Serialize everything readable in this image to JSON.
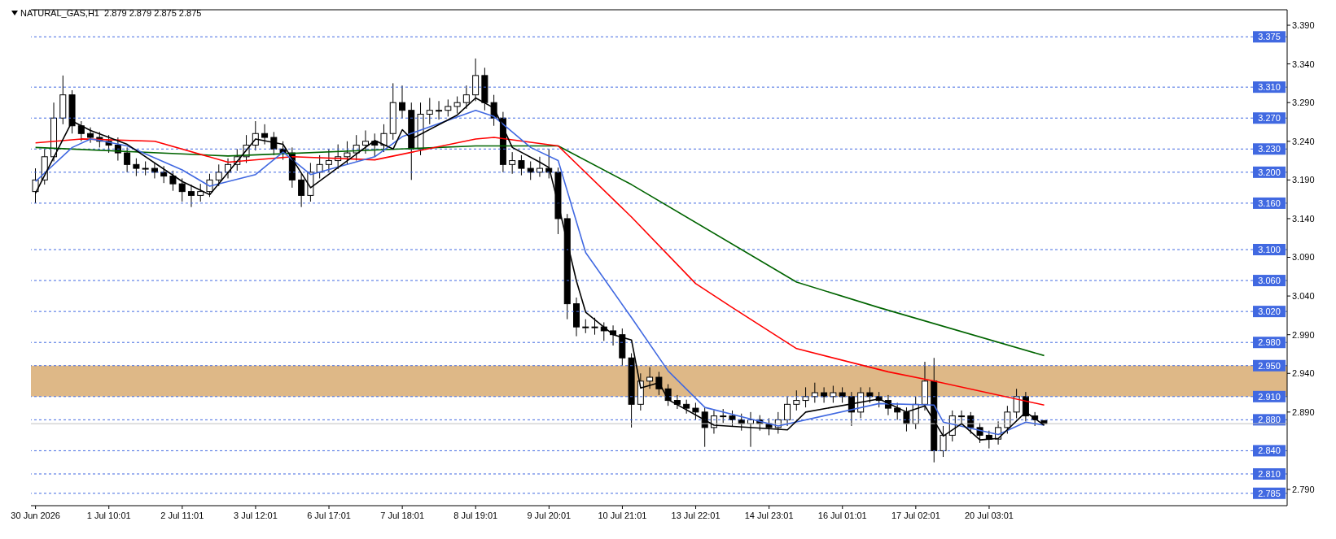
{
  "chart_data": {
    "type": "candlestick",
    "title": "NATURAL_GAS,H1  2.879 2.879 2.875 2.875",
    "color": "#000000",
    "categories": [
      "30 Jun 2026",
      null,
      null,
      null,
      null,
      null,
      null,
      null,
      "1 Jul 10:01",
      null,
      null,
      null,
      null,
      null,
      null,
      null,
      "2 Jul 11:01",
      null,
      null,
      null,
      null,
      null,
      null,
      null,
      "3 Jul 12:01",
      null,
      null,
      null,
      null,
      null,
      null,
      null,
      "6 Jul 17:01",
      null,
      null,
      null,
      null,
      null,
      null,
      null,
      "7 Jul 18:01",
      null,
      null,
      null,
      null,
      null,
      null,
      null,
      "8 Jul 19:01",
      null,
      null,
      null,
      null,
      null,
      null,
      null,
      "9 Jul 20:01",
      null,
      null,
      null,
      null,
      null,
      null,
      null,
      "10 Jul 21:01",
      null,
      null,
      null,
      null,
      null,
      null,
      null,
      "13 Jul 22:01",
      null,
      null,
      null,
      null,
      null,
      null,
      null,
      "14 Jul 23:01",
      null,
      null,
      null,
      null,
      null,
      null,
      null,
      "16 Jul 01:01",
      null,
      null,
      null,
      null,
      null,
      null,
      null,
      "17 Jul 02:01",
      null,
      null,
      null,
      null,
      null,
      null,
      null,
      "20 Jul 03:01",
      null,
      null,
      null,
      null,
      null,
      null,
      null,
      null,
      null,
      null,
      null,
      null,
      null,
      null,
      null,
      null,
      null,
      null,
      null,
      null,
      null,
      null,
      null,
      null,
      null,
      null,
      null,
      null,
      null,
      null,
      null,
      null
    ],
    "ohlc": [
      [
        3.175,
        3.205,
        3.16,
        3.19
      ],
      [
        3.19,
        3.23,
        3.184,
        3.22
      ],
      [
        3.22,
        3.29,
        3.214,
        3.27
      ],
      [
        3.27,
        3.325,
        3.262,
        3.3
      ],
      [
        3.3,
        3.306,
        3.25,
        3.26
      ],
      [
        3.26,
        3.266,
        3.24,
        3.25
      ],
      [
        3.25,
        3.258,
        3.238,
        3.245
      ],
      [
        3.245,
        3.252,
        3.232,
        3.24
      ],
      [
        3.24,
        3.248,
        3.225,
        3.235
      ],
      [
        3.235,
        3.245,
        3.215,
        3.225
      ],
      [
        3.225,
        3.232,
        3.2,
        3.21
      ],
      [
        3.21,
        3.218,
        3.195,
        3.205
      ],
      [
        3.205,
        3.214,
        3.196,
        3.205
      ],
      [
        3.205,
        3.212,
        3.192,
        3.2
      ],
      [
        3.2,
        3.208,
        3.186,
        3.195
      ],
      [
        3.195,
        3.202,
        3.176,
        3.185
      ],
      [
        3.185,
        3.192,
        3.162,
        3.175
      ],
      [
        3.175,
        3.184,
        3.155,
        3.17
      ],
      [
        3.17,
        3.185,
        3.162,
        3.175
      ],
      [
        3.175,
        3.198,
        3.168,
        3.19
      ],
      [
        3.19,
        3.21,
        3.182,
        3.2
      ],
      [
        3.2,
        3.218,
        3.192,
        3.21
      ],
      [
        3.21,
        3.23,
        3.202,
        3.22
      ],
      [
        3.22,
        3.248,
        3.212,
        3.235
      ],
      [
        3.235,
        3.266,
        3.228,
        3.25
      ],
      [
        3.25,
        3.262,
        3.236,
        3.245
      ],
      [
        3.245,
        3.252,
        3.222,
        3.23
      ],
      [
        3.23,
        3.24,
        3.216,
        3.225
      ],
      [
        3.225,
        3.232,
        3.18,
        3.19
      ],
      [
        3.19,
        3.198,
        3.155,
        3.17
      ],
      [
        3.17,
        3.212,
        3.162,
        3.2
      ],
      [
        3.2,
        3.222,
        3.192,
        3.21
      ],
      [
        3.21,
        3.23,
        3.2,
        3.215
      ],
      [
        3.215,
        3.236,
        3.204,
        3.22
      ],
      [
        3.22,
        3.24,
        3.21,
        3.225
      ],
      [
        3.225,
        3.248,
        3.215,
        3.235
      ],
      [
        3.235,
        3.254,
        3.224,
        3.24
      ],
      [
        3.24,
        3.25,
        3.22,
        3.235
      ],
      [
        3.235,
        3.262,
        3.226,
        3.25
      ],
      [
        3.25,
        3.315,
        3.242,
        3.29
      ],
      [
        3.29,
        3.312,
        3.27,
        3.28
      ],
      [
        3.28,
        3.29,
        3.19,
        3.23
      ],
      [
        3.23,
        3.29,
        3.222,
        3.275
      ],
      [
        3.275,
        3.296,
        3.262,
        3.28
      ],
      [
        3.28,
        3.292,
        3.268,
        3.28
      ],
      [
        3.28,
        3.294,
        3.272,
        3.285
      ],
      [
        3.285,
        3.298,
        3.276,
        3.29
      ],
      [
        3.29,
        3.312,
        3.282,
        3.3
      ],
      [
        3.3,
        3.347,
        3.292,
        3.325
      ],
      [
        3.325,
        3.335,
        3.28,
        3.29
      ],
      [
        3.29,
        3.3,
        3.26,
        3.27
      ],
      [
        3.27,
        3.278,
        3.2,
        3.21
      ],
      [
        3.21,
        3.226,
        3.198,
        3.215
      ],
      [
        3.215,
        3.222,
        3.196,
        3.205
      ],
      [
        3.205,
        3.214,
        3.19,
        3.2
      ],
      [
        3.2,
        3.22,
        3.194,
        3.205
      ],
      [
        3.205,
        3.23,
        3.192,
        3.2
      ],
      [
        3.2,
        3.206,
        3.12,
        3.14
      ],
      [
        3.14,
        3.146,
        3.01,
        3.03
      ],
      [
        3.03,
        3.038,
        2.988,
        3.0
      ],
      [
        3.0,
        3.01,
        2.992,
        3.0
      ],
      [
        3.0,
        3.012,
        2.99,
        3.0
      ],
      [
        3.0,
        3.006,
        2.982,
        2.995
      ],
      [
        2.995,
        3.002,
        2.976,
        2.99
      ],
      [
        2.99,
        2.998,
        2.95,
        2.96
      ],
      [
        2.96,
        2.966,
        2.87,
        2.9
      ],
      [
        2.9,
        2.94,
        2.892,
        2.93
      ],
      [
        2.93,
        2.948,
        2.92,
        2.935
      ],
      [
        2.935,
        2.942,
        2.912,
        2.92
      ],
      [
        2.92,
        2.926,
        2.898,
        2.905
      ],
      [
        2.905,
        2.912,
        2.894,
        2.9
      ],
      [
        2.9,
        2.906,
        2.888,
        2.895
      ],
      [
        2.895,
        2.902,
        2.88,
        2.89
      ],
      [
        2.89,
        2.896,
        2.845,
        2.87
      ],
      [
        2.87,
        2.892,
        2.862,
        2.885
      ],
      [
        2.885,
        2.894,
        2.876,
        2.885
      ],
      [
        2.885,
        2.892,
        2.872,
        2.88
      ],
      [
        2.88,
        2.888,
        2.866,
        2.875
      ],
      [
        2.875,
        2.89,
        2.845,
        2.88
      ],
      [
        2.88,
        2.886,
        2.866,
        2.875
      ],
      [
        2.875,
        2.882,
        2.86,
        2.87
      ],
      [
        2.87,
        2.89,
        2.862,
        2.88
      ],
      [
        2.88,
        2.91,
        2.872,
        2.9
      ],
      [
        2.9,
        2.918,
        2.892,
        2.905
      ],
      [
        2.905,
        2.922,
        2.896,
        2.91
      ],
      [
        2.91,
        2.928,
        2.902,
        2.915
      ],
      [
        2.915,
        2.922,
        2.902,
        2.91
      ],
      [
        2.91,
        2.924,
        2.902,
        2.915
      ],
      [
        2.915,
        2.922,
        2.902,
        2.91
      ],
      [
        2.91,
        2.916,
        2.872,
        2.89
      ],
      [
        2.89,
        2.922,
        2.882,
        2.915
      ],
      [
        2.915,
        2.922,
        2.902,
        2.91
      ],
      [
        2.91,
        2.916,
        2.896,
        2.905
      ],
      [
        2.905,
        2.912,
        2.886,
        2.895
      ],
      [
        2.895,
        2.902,
        2.88,
        2.89
      ],
      [
        2.89,
        2.896,
        2.865,
        2.875
      ],
      [
        2.875,
        2.91,
        2.868,
        2.9
      ],
      [
        2.9,
        2.955,
        2.892,
        2.93
      ],
      [
        2.93,
        2.96,
        2.825,
        2.84
      ],
      [
        2.84,
        2.872,
        2.832,
        2.86
      ],
      [
        2.86,
        2.892,
        2.852,
        2.885
      ],
      [
        2.885,
        2.892,
        2.876,
        2.885
      ],
      [
        2.885,
        2.89,
        2.862,
        2.87
      ],
      [
        2.87,
        2.876,
        2.85,
        2.86
      ],
      [
        2.86,
        2.866,
        2.843,
        2.855
      ],
      [
        2.855,
        2.878,
        2.848,
        2.87
      ],
      [
        2.87,
        2.898,
        2.862,
        2.89
      ],
      [
        2.89,
        2.92,
        2.882,
        2.91
      ],
      [
        2.91,
        2.916,
        2.878,
        2.885
      ],
      [
        2.885,
        2.89,
        2.872,
        2.88
      ],
      [
        2.879,
        2.879,
        2.875,
        2.875
      ],
      null,
      null,
      null,
      null,
      null,
      null,
      null,
      null,
      null,
      null,
      null,
      null,
      null,
      null,
      null,
      null,
      null,
      null,
      null,
      null,
      null,
      null,
      null,
      null,
      null,
      null
    ],
    "series": [
      {
        "type": "line",
        "color": "#006400",
        "values": [
          3.232,
          null,
          null,
          null,
          null,
          null,
          null,
          null,
          null,
          null,
          null,
          null,
          null,
          null,
          null,
          null,
          null,
          null,
          null,
          null,
          null,
          3.221,
          null,
          null,
          null,
          null,
          null,
          null,
          null,
          null,
          null,
          null,
          null,
          null,
          null,
          null,
          null,
          null,
          null,
          null,
          null,
          null,
          null,
          null,
          null,
          null,
          null,
          null,
          3.234,
          null,
          null,
          null,
          null,
          null,
          null,
          null,
          null,
          3.234,
          null,
          null,
          null,
          null,
          null,
          null,
          null,
          3.184,
          null,
          null,
          null,
          null,
          null,
          null,
          null,
          null,
          null,
          null,
          null,
          null,
          null,
          null,
          null,
          null,
          null,
          3.058,
          null,
          null,
          null,
          null,
          null,
          null,
          null,
          null,
          3.025,
          null,
          null,
          null,
          null,
          null,
          null,
          null,
          null,
          null,
          null,
          null,
          null,
          null,
          null,
          null,
          null,
          null,
          2.963,
          null,
          null,
          null,
          null,
          null,
          null,
          null,
          null,
          null,
          null,
          null,
          null,
          null,
          null,
          null,
          null,
          null,
          null,
          null,
          null,
          null,
          null,
          null,
          null,
          null,
          null
        ]
      },
      {
        "type": "line",
        "color": "#ff0000",
        "values": [
          3.238,
          null,
          null,
          null,
          null,
          3.243,
          null,
          null,
          null,
          null,
          null,
          null,
          null,
          3.24,
          null,
          null,
          null,
          null,
          null,
          null,
          null,
          3.213,
          null,
          null,
          null,
          null,
          null,
          null,
          3.22,
          null,
          null,
          null,
          null,
          null,
          null,
          null,
          null,
          3.216,
          null,
          null,
          null,
          null,
          null,
          null,
          null,
          null,
          null,
          null,
          3.243,
          null,
          3.245,
          null,
          null,
          null,
          null,
          null,
          null,
          3.234,
          null,
          null,
          null,
          null,
          null,
          null,
          null,
          3.142,
          null,
          null,
          null,
          null,
          null,
          null,
          3.056,
          null,
          null,
          null,
          3.025,
          null,
          null,
          null,
          null,
          null,
          null,
          2.972,
          null,
          null,
          null,
          null,
          null,
          null,
          null,
          null,
          null,
          2.942,
          null,
          null,
          null,
          null,
          2.93,
          null,
          null,
          null,
          null,
          null,
          null,
          null,
          null,
          null,
          null,
          null,
          2.899,
          null,
          null,
          null,
          null,
          null,
          null,
          null,
          null,
          null,
          null,
          null,
          null,
          null,
          null,
          null,
          null,
          null,
          null,
          null,
          null,
          null,
          null,
          null,
          null,
          null,
          null
        ]
      },
      {
        "type": "line",
        "color": "#4169e1",
        "values": [
          3.188,
          null,
          null,
          null,
          3.232,
          null,
          3.243,
          3.241,
          null,
          null,
          3.234,
          null,
          null,
          null,
          null,
          null,
          3.203,
          null,
          null,
          3.182,
          null,
          null,
          null,
          null,
          3.197,
          null,
          null,
          3.226,
          null,
          null,
          3.197,
          null,
          null,
          null,
          null,
          null,
          null,
          3.22,
          null,
          null,
          3.246,
          null,
          null,
          null,
          null,
          null,
          null,
          null,
          3.28,
          null,
          3.272,
          null,
          null,
          null,
          3.232,
          null,
          null,
          3.215,
          null,
          null,
          3.096,
          null,
          null,
          null,
          null,
          3.012,
          null,
          null,
          null,
          2.943,
          null,
          null,
          null,
          2.896,
          null,
          null,
          null,
          null,
          null,
          null,
          null,
          2.872,
          null,
          null,
          null,
          null,
          null,
          null,
          null,
          null,
          null,
          null,
          2.901,
          null,
          null,
          null,
          null,
          null,
          2.899,
          2.877,
          null,
          null,
          null,
          null,
          null,
          2.861,
          null,
          null,
          2.877,
          null,
          2.873,
          null,
          null,
          null,
          null,
          null,
          null,
          null,
          null,
          null,
          null,
          null,
          null,
          null,
          null,
          null,
          null,
          null,
          null,
          null,
          null,
          null,
          null,
          null,
          null,
          null,
          null
        ]
      },
      {
        "type": "line",
        "color": "#000000",
        "values": [
          3.173,
          null,
          null,
          null,
          3.266,
          null,
          3.254,
          null,
          null,
          null,
          3.236,
          null,
          null,
          null,
          null,
          null,
          3.188,
          null,
          null,
          3.171,
          null,
          null,
          null,
          null,
          3.243,
          null,
          null,
          3.236,
          null,
          null,
          3.18,
          null,
          null,
          null,
          null,
          null,
          null,
          3.241,
          null,
          3.23,
          3.255,
          3.243,
          null,
          null,
          null,
          null,
          3.274,
          null,
          3.296,
          null,
          3.283,
          null,
          3.232,
          null,
          null,
          3.213,
          3.206,
          3.159,
          null,
          3.059,
          3.019,
          null,
          null,
          2.99,
          null,
          2.983,
          2.921,
          null,
          2.928,
          2.906,
          null,
          null,
          null,
          null,
          2.873,
          null,
          null,
          null,
          null,
          null,
          null,
          null,
          2.867,
          null,
          2.89,
          null,
          null,
          null,
          null,
          null,
          null,
          null,
          2.907,
          null,
          null,
          2.89,
          null,
          2.898,
          null,
          2.859,
          null,
          2.875,
          null,
          2.854,
          null,
          2.856,
          null,
          null,
          2.89,
          null,
          2.873,
          null,
          null,
          null,
          null,
          null,
          null,
          null,
          null,
          null,
          null,
          null,
          null,
          null,
          null,
          null,
          null,
          null,
          null,
          null,
          null,
          null,
          null,
          null,
          null,
          null,
          null
        ]
      }
    ],
    "ylim": [
      2.769,
      3.41
    ],
    "yticks": [
      {
        "value": 3.39,
        "label": "3.390"
      },
      {
        "value": 3.34,
        "label": "3.340"
      },
      {
        "value": 3.29,
        "label": "3.290"
      },
      {
        "value": 3.24,
        "label": "3.240"
      },
      {
        "value": 3.19,
        "label": "3.190"
      },
      {
        "value": 3.14,
        "label": "3.140"
      },
      {
        "value": 3.09,
        "label": "3.090"
      },
      {
        "value": 3.04,
        "label": "3.040"
      },
      {
        "value": 2.99,
        "label": "2.990"
      },
      {
        "value": 2.94,
        "label": "2.940"
      },
      {
        "value": 2.89,
        "label": "2.890"
      },
      {
        "value": 2.79,
        "label": "2.790"
      }
    ],
    "ref_lines": [
      {
        "axis": "y",
        "value": 3.375,
        "label": "3.375",
        "color": "#4169e1",
        "line_style": "dashed"
      },
      {
        "axis": "y",
        "value": 3.31,
        "label": "3.310",
        "color": "#4169e1",
        "line_style": "dashed"
      },
      {
        "axis": "y",
        "value": 3.27,
        "label": "3.270",
        "color": "#4169e1",
        "line_style": "dashed"
      },
      {
        "axis": "y",
        "value": 3.23,
        "label": "3.230",
        "color": "#4169e1",
        "line_style": "dashed"
      },
      {
        "axis": "y",
        "value": 3.2,
        "label": "3.200",
        "color": "#4169e1",
        "line_style": "dashed"
      },
      {
        "axis": "y",
        "value": 3.16,
        "label": "3.160",
        "color": "#4169e1",
        "line_style": "dashed"
      },
      {
        "axis": "y",
        "value": 3.1,
        "label": "3.100",
        "color": "#4169e1",
        "line_style": "dashed"
      },
      {
        "axis": "y",
        "value": 3.06,
        "label": "3.060",
        "color": "#4169e1",
        "line_style": "dashed"
      },
      {
        "axis": "y",
        "value": 3.02,
        "label": "3.020",
        "color": "#4169e1",
        "line_style": "dashed"
      },
      {
        "axis": "y",
        "value": 2.98,
        "label": "2.980",
        "color": "#4169e1",
        "line_style": "dashed"
      },
      {
        "axis": "y",
        "value": 2.95,
        "label": "2.950",
        "color": "#4169e1",
        "line_style": "dashed"
      },
      {
        "axis": "y",
        "value": 2.91,
        "label": "2.910",
        "color": "#4169e1",
        "line_style": "dashed"
      },
      {
        "axis": "y",
        "value": 2.88,
        "label": "2.880",
        "color": "#4169e1",
        "line_style": "dashed"
      },
      {
        "axis": "y",
        "value": 2.875,
        "color": "#c0c0c0",
        "line_style": "solid"
      },
      {
        "axis": "y",
        "value": 2.84,
        "label": "2.840",
        "color": "#4169e1",
        "line_style": "dashed"
      },
      {
        "axis": "y",
        "value": 2.81,
        "label": "2.810",
        "color": "#4169e1",
        "line_style": "dashed"
      },
      {
        "axis": "y",
        "value": 2.785,
        "label": "2.785",
        "color": "#4169e1",
        "line_style": "dashed"
      }
    ],
    "bands": [
      {
        "axis": "y",
        "from": 2.91,
        "to": 2.95,
        "color": "#deb887"
      }
    ],
    "legend": false
  }
}
